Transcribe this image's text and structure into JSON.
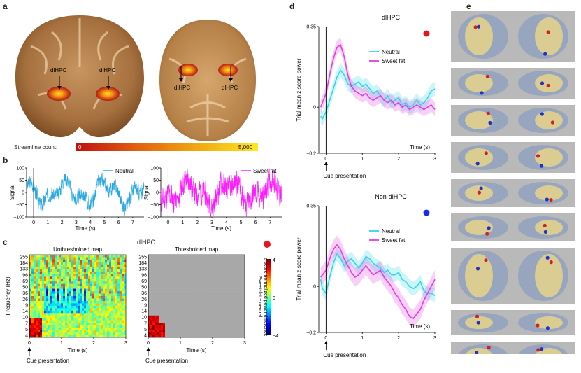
{
  "panel_letters": {
    "a": "a",
    "b": "b",
    "c": "c",
    "d": "d",
    "e": "e"
  },
  "panel_a": {
    "coronal_labels": [
      "dlHPC",
      "dlHPC"
    ],
    "axial_labels": [
      "dlHPC",
      "dlHPC"
    ],
    "colorbar": {
      "label": "Streamline count:",
      "min": "0",
      "max": "5,000"
    }
  },
  "chart_data": [
    {
      "id": "b-neutral",
      "type": "line",
      "ylabel": "Signal",
      "xlabel": "Time (s)",
      "legend": "Neutral",
      "color": "#29a8e0",
      "xlim": [
        -0.5,
        7.8
      ],
      "ylim": [
        -100,
        100
      ],
      "xticks": [
        0,
        1,
        2,
        3,
        4,
        5,
        6,
        7
      ],
      "yticks": [
        -100,
        -50,
        0,
        50,
        100
      ],
      "seed": 3
    },
    {
      "id": "b-sweet",
      "type": "line",
      "ylabel": "Signal",
      "xlabel": "Time (s)",
      "legend": "Sweet fat",
      "color": "#ff1aff",
      "xlim": [
        -0.5,
        7.8
      ],
      "ylim": [
        -100,
        100
      ],
      "xticks": [
        0,
        1,
        2,
        3,
        4,
        5,
        6,
        7
      ],
      "yticks": [
        -100,
        -50,
        0,
        50,
        100
      ],
      "seed": 11
    },
    {
      "id": "c-unthresholded",
      "type": "heatmap",
      "title": "Unthresholded map",
      "ylabel": "Frequency (Hz)",
      "xlabel": "Time (s)",
      "yticks": [
        "255",
        "184",
        "133",
        "96",
        "69",
        "50",
        "36",
        "26",
        "19",
        "14",
        "10",
        "7",
        "5",
        "4"
      ],
      "xticks": [
        0,
        1,
        2,
        3
      ],
      "annotation": "Cue presentation"
    },
    {
      "id": "c-thresholded",
      "type": "heatmap",
      "title": "Thresholded map",
      "xlabel": "Time (s)",
      "yticks": [
        "255",
        "184",
        "133",
        "96",
        "69",
        "50",
        "36",
        "26",
        "19",
        "14",
        "10",
        "7",
        "5",
        "4"
      ],
      "xticks": [
        0,
        1,
        2,
        3
      ],
      "annotation": "Cue presentation",
      "shared_title": "dlHPC",
      "colorbar": {
        "label": "Sweet-fat − neutral\nz-score normalized power difference",
        "ticks": [
          "4",
          "0",
          "−4"
        ]
      }
    },
    {
      "id": "d-dlhpc",
      "type": "line",
      "title": "dlHPC",
      "ylabel": "Trial mean z-score power",
      "xlabel": "Time (s)",
      "xlim": [
        -0.2,
        3
      ],
      "ylim": [
        -0.2,
        0.35
      ],
      "yticks": [
        -0.2,
        0,
        0.35
      ],
      "xticks": [
        0,
        1,
        2,
        3
      ],
      "annotation": "Cue presentation",
      "dot_color": "#e8141f",
      "x": [
        -0.15,
        -0.1,
        0,
        0.1,
        0.2,
        0.3,
        0.4,
        0.5,
        0.6,
        0.7,
        0.8,
        0.9,
        1.0,
        1.1,
        1.2,
        1.3,
        1.4,
        1.5,
        1.6,
        1.7,
        1.8,
        1.9,
        2.0,
        2.1,
        2.2,
        2.3,
        2.4,
        2.5,
        2.6,
        2.7,
        2.8,
        2.9,
        3.0
      ],
      "series": [
        {
          "name": "Neutral",
          "color": "#33d6e6",
          "band": 0.03,
          "values": [
            -0.04,
            -0.05,
            -0.02,
            0.03,
            0.08,
            0.13,
            0.16,
            0.14,
            0.1,
            0.09,
            0.1,
            0.11,
            0.09,
            0.1,
            0.08,
            0.06,
            0.07,
            0.05,
            0.03,
            0.05,
            0.02,
            0.03,
            0.04,
            0.01,
            0.02,
            0.0,
            0.01,
            0.03,
            0.01,
            0.02,
            0.04,
            0.07,
            0.08
          ]
        },
        {
          "name": "Sweet fat",
          "color": "#e040e0",
          "band": 0.03,
          "values": [
            0.0,
            0.02,
            0.06,
            0.14,
            0.21,
            0.26,
            0.27,
            0.22,
            0.14,
            0.09,
            0.07,
            0.06,
            0.05,
            0.06,
            0.04,
            0.03,
            0.04,
            0.05,
            0.03,
            0.02,
            0.03,
            0.01,
            0.02,
            0.0,
            0.01,
            -0.01,
            0.0,
            0.01,
            0.0,
            -0.01,
            0.0,
            0.01,
            -0.01
          ]
        }
      ]
    },
    {
      "id": "d-non",
      "type": "line",
      "title": "Non-dlHPC",
      "ylabel": "Trial mean z-score power",
      "xlabel": "Time (s)",
      "xlim": [
        -0.2,
        3
      ],
      "ylim": [
        -0.2,
        0.35
      ],
      "yticks": [
        -0.2,
        0,
        0.35
      ],
      "xticks": [
        0,
        1,
        2,
        3
      ],
      "annotation": "Cue presentation",
      "dot_color": "#1a2ee8",
      "x": [
        -0.15,
        -0.1,
        0,
        0.1,
        0.2,
        0.3,
        0.4,
        0.5,
        0.6,
        0.7,
        0.8,
        0.9,
        1.0,
        1.1,
        1.2,
        1.3,
        1.4,
        1.5,
        1.6,
        1.7,
        1.8,
        1.9,
        2.0,
        2.1,
        2.2,
        2.3,
        2.4,
        2.5,
        2.6,
        2.7,
        2.8,
        2.9,
        3.0
      ],
      "series": [
        {
          "name": "Neutral",
          "color": "#33d6e6",
          "band": 0.03,
          "values": [
            0.03,
            -0.01,
            -0.03,
            0.04,
            0.1,
            0.14,
            0.12,
            0.09,
            0.11,
            0.12,
            0.1,
            0.08,
            0.1,
            0.13,
            0.12,
            0.1,
            0.09,
            0.08,
            0.06,
            0.07,
            0.05,
            0.05,
            0.06,
            0.03,
            0.02,
            0.0,
            -0.01,
            0.0,
            0.02,
            -0.02,
            -0.03,
            -0.03,
            -0.04
          ]
        },
        {
          "name": "Sweet fat",
          "color": "#e040e0",
          "band": 0.04,
          "values": [
            0.04,
            0.05,
            0.07,
            0.12,
            0.16,
            0.18,
            0.16,
            0.12,
            0.09,
            0.06,
            0.04,
            0.05,
            0.07,
            0.09,
            0.07,
            0.05,
            0.06,
            0.07,
            0.04,
            0.02,
            0.0,
            -0.03,
            -0.05,
            -0.08,
            -0.1,
            -0.13,
            -0.14,
            -0.12,
            -0.1,
            -0.06,
            -0.03,
            0.0,
            0.03
          ]
        }
      ]
    }
  ],
  "panel_e": {
    "rows": 9
  }
}
